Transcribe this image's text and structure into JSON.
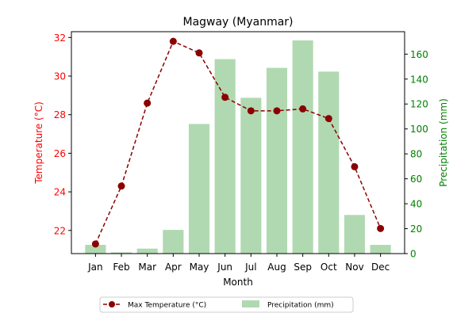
{
  "chart_data": {
    "type": "bar",
    "title": "Magway (Myanmar)",
    "xlabel": "Month",
    "categories": [
      "Jan",
      "Feb",
      "Mar",
      "Apr",
      "May",
      "Jun",
      "Jul",
      "Aug",
      "Sep",
      "Oct",
      "Nov",
      "Dec"
    ],
    "y_left": {
      "label": "Temperature (°C)",
      "color": "#ff0000",
      "ylim": [
        20.8,
        32.3
      ],
      "ticks": [
        22,
        24,
        26,
        28,
        30,
        32
      ]
    },
    "y_right": {
      "label": "Precipitation (mm)",
      "color": "#008000",
      "ylim": [
        0,
        178
      ],
      "ticks": [
        0,
        20,
        40,
        60,
        80,
        100,
        120,
        140,
        160
      ]
    },
    "series": [
      {
        "name": "Max Temperature (°C)",
        "type": "line",
        "axis": "left",
        "color": "#8b0000",
        "values": [
          21.3,
          24.3,
          28.6,
          31.8,
          31.2,
          28.9,
          28.2,
          28.2,
          28.3,
          27.8,
          25.3,
          22.1
        ]
      },
      {
        "name": "Precipitation (mm)",
        "type": "bar",
        "axis": "right",
        "color": "#b1d9b1",
        "values": [
          7,
          1,
          4,
          19,
          104,
          156,
          125,
          149,
          171,
          146,
          31,
          7
        ]
      }
    ],
    "legend_position": "bottom-center",
    "grid": false
  }
}
